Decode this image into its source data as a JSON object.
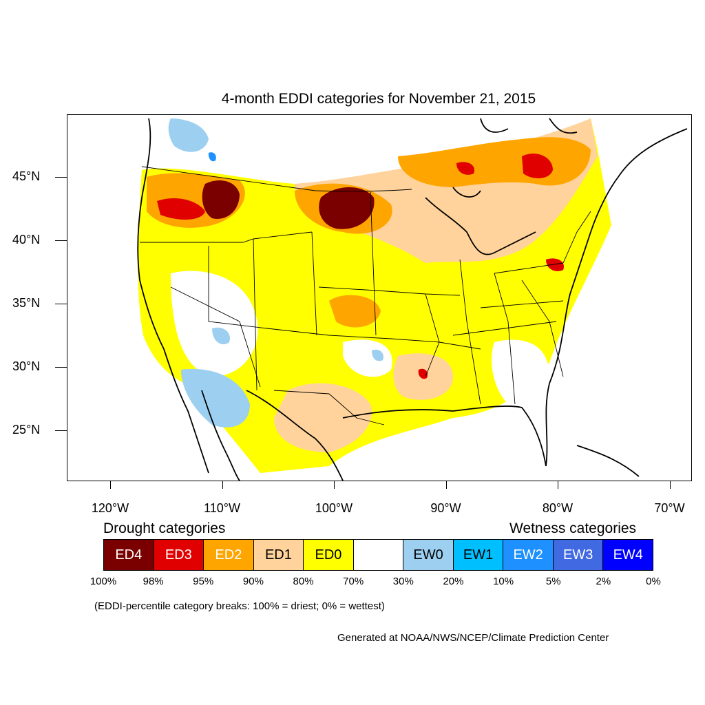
{
  "title": "4-month EDDI categories for November 21, 2015",
  "lat_labels": [
    {
      "text": "45°N",
      "lat": 45
    },
    {
      "text": "40°N",
      "lat": 40
    },
    {
      "text": "35°N",
      "lat": 35
    },
    {
      "text": "30°N",
      "lat": 30
    },
    {
      "text": "25°N",
      "lat": 25
    }
  ],
  "lon_labels": [
    {
      "text": "120°W",
      "lon": -120
    },
    {
      "text": "110°W",
      "lon": -110
    },
    {
      "text": "100°W",
      "lon": -100
    },
    {
      "text": "90°W",
      "lon": -90
    },
    {
      "text": "80°W",
      "lon": -80
    },
    {
      "text": "70°W",
      "lon": -70
    }
  ],
  "legend": {
    "drought_heading": "Drought categories",
    "wetness_heading": "Wetness categories",
    "categories": [
      {
        "label": "ED4",
        "color": "#7a0000",
        "text_color": "#ffffff"
      },
      {
        "label": "ED3",
        "color": "#e00000",
        "text_color": "#ffffff"
      },
      {
        "label": "ED2",
        "color": "#ffa500",
        "text_color": "#ffffff"
      },
      {
        "label": "ED1",
        "color": "#ffd39b",
        "text_color": "#000000"
      },
      {
        "label": "ED0",
        "color": "#ffff00",
        "text_color": "#000000"
      },
      {
        "label": "",
        "color": "#ffffff",
        "text_color": "#000000"
      },
      {
        "label": "EW0",
        "color": "#9ccff0",
        "text_color": "#000000"
      },
      {
        "label": "EW1",
        "color": "#00bfff",
        "text_color": "#000000"
      },
      {
        "label": "EW2",
        "color": "#1e90ff",
        "text_color": "#ffffff"
      },
      {
        "label": "EW3",
        "color": "#4169e1",
        "text_color": "#ffffff"
      },
      {
        "label": "EW4",
        "color": "#0000ff",
        "text_color": "#ffffff"
      }
    ],
    "breaks": [
      "100%",
      "98%",
      "95%",
      "90%",
      "80%",
      "70%",
      "30%",
      "20%",
      "10%",
      "5%",
      "2%",
      "0%"
    ]
  },
  "note": "(EDDI-percentile category breaks: 100% = driest; 0% = wettest)",
  "credit": "Generated at NOAA/NWS/NCEP/Climate Prediction Center"
}
